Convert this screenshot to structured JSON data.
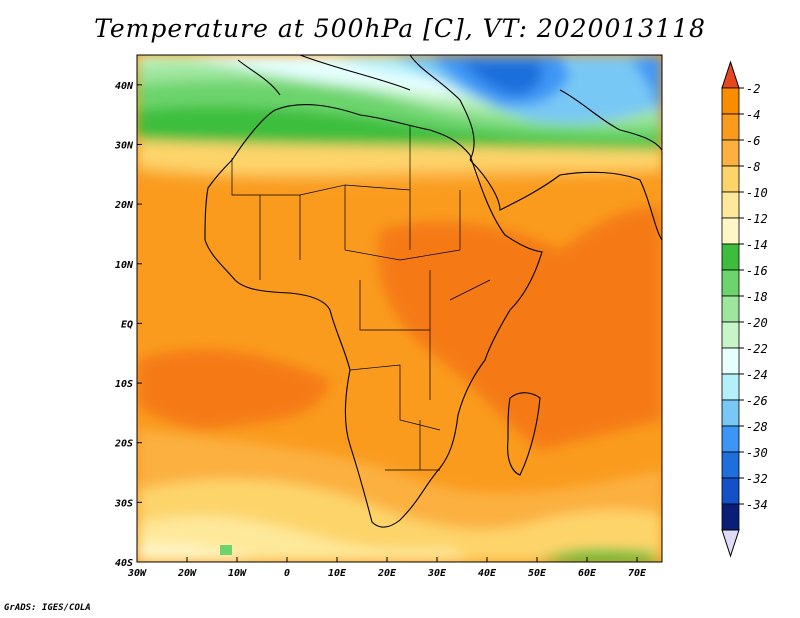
{
  "title": "Temperature at 500hPa [C], VT: 2020013118",
  "credit": "GrADS: IGES/COLA",
  "map": {
    "lon_range": [
      -30,
      75
    ],
    "lat_range": [
      -40,
      45
    ],
    "x_ticks": [
      {
        "value": -30,
        "label": "30W"
      },
      {
        "value": -20,
        "label": "20W"
      },
      {
        "value": -10,
        "label": "10W"
      },
      {
        "value": 0,
        "label": "0"
      },
      {
        "value": 10,
        "label": "10E"
      },
      {
        "value": 20,
        "label": "20E"
      },
      {
        "value": 30,
        "label": "30E"
      },
      {
        "value": 40,
        "label": "40E"
      },
      {
        "value": 50,
        "label": "50E"
      },
      {
        "value": 60,
        "label": "60E"
      },
      {
        "value": 70,
        "label": "70E"
      }
    ],
    "y_ticks": [
      {
        "value": 40,
        "label": "40N"
      },
      {
        "value": 30,
        "label": "30N"
      },
      {
        "value": 20,
        "label": "20N"
      },
      {
        "value": 10,
        "label": "10N"
      },
      {
        "value": 0,
        "label": "EQ"
      },
      {
        "value": -10,
        "label": "10S"
      },
      {
        "value": -20,
        "label": "20S"
      },
      {
        "value": -30,
        "label": "30S"
      },
      {
        "value": -40,
        "label": "40S"
      }
    ]
  },
  "colorbar": {
    "levels": [
      {
        "label": "-2",
        "color": "#fa8c00"
      },
      {
        "label": "-4",
        "color": "#fa9b1e"
      },
      {
        "label": "-6",
        "color": "#fbb040"
      },
      {
        "label": "-8",
        "color": "#fdd46a"
      },
      {
        "label": "-10",
        "color": "#fee89a"
      },
      {
        "label": "-12",
        "color": "#fef6c4"
      },
      {
        "label": "-14",
        "color": "#3cbe3c"
      },
      {
        "label": "-16",
        "color": "#6cd46c"
      },
      {
        "label": "-18",
        "color": "#9ee59e"
      },
      {
        "label": "-20",
        "color": "#c8f5c8"
      },
      {
        "label": "-22",
        "color": "#e6ffff"
      },
      {
        "label": "-24",
        "color": "#b4f0fa"
      },
      {
        "label": "-26",
        "color": "#78c8f5"
      },
      {
        "label": "-28",
        "color": "#3c96f5"
      },
      {
        "label": "-30",
        "color": "#1e6edc"
      },
      {
        "label": "-32",
        "color": "#1450c8"
      },
      {
        "label": "-34",
        "color": "#0a1e78"
      }
    ],
    "top_arrow_color": "#e8461e",
    "bottom_arrow_color": "#e0dcf5"
  }
}
